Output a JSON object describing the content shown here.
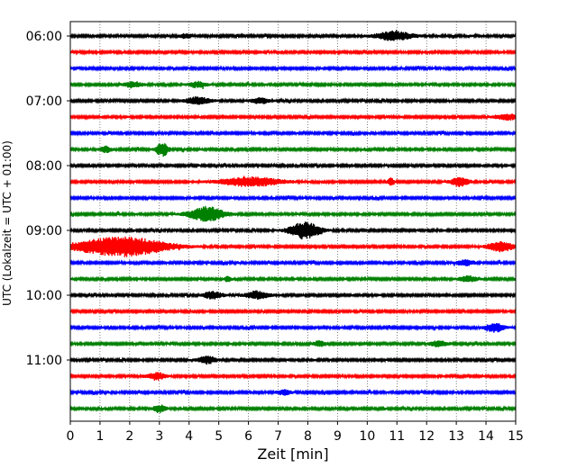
{
  "chart_data": {
    "type": "line",
    "title": "",
    "xlabel": "Zeit  [min]",
    "ylabel": "UTC (Lokalzeit = UTC + 01:00)",
    "xlim": [
      0,
      15
    ],
    "xticks": [
      0,
      1,
      2,
      3,
      4,
      5,
      6,
      7,
      8,
      9,
      10,
      11,
      12,
      13,
      14,
      15
    ],
    "x_gridlines": "dotted vertical at each minute",
    "trace_interval_minutes": 15,
    "y_ticks": [
      {
        "label": "06:00",
        "trace_index": 0
      },
      {
        "label": "07:00",
        "trace_index": 4
      },
      {
        "label": "08:00",
        "trace_index": 8
      },
      {
        "label": "09:00",
        "trace_index": 12
      },
      {
        "label": "10:00",
        "trace_index": 16
      },
      {
        "label": "11:00",
        "trace_index": 20
      }
    ],
    "color_cycle": [
      "#000000",
      "#ff0000",
      "#0000ff",
      "#008000"
    ],
    "series": [
      {
        "start": "06:00",
        "color": "#000000",
        "events": [
          {
            "t": 10.9,
            "amp": 5,
            "dur": 0.6
          },
          {
            "t": 3.9,
            "amp": 2.5,
            "dur": 0.2
          }
        ]
      },
      {
        "start": "06:15",
        "color": "#ff0000",
        "events": []
      },
      {
        "start": "06:30",
        "color": "#0000ff",
        "events": []
      },
      {
        "start": "06:45",
        "color": "#008000",
        "events": [
          {
            "t": 4.3,
            "amp": 3,
            "dur": 0.3
          },
          {
            "t": 2.1,
            "amp": 3,
            "dur": 0.3
          }
        ]
      },
      {
        "start": "07:00",
        "color": "#000000",
        "events": [
          {
            "t": 4.3,
            "amp": 4,
            "dur": 0.4
          },
          {
            "t": 6.4,
            "amp": 3,
            "dur": 0.3
          }
        ]
      },
      {
        "start": "07:15",
        "color": "#ff0000",
        "events": [
          {
            "t": 14.8,
            "amp": 3,
            "dur": 0.5
          }
        ]
      },
      {
        "start": "07:30",
        "color": "#0000ff",
        "events": []
      },
      {
        "start": "07:45",
        "color": "#008000",
        "events": [
          {
            "t": 3.1,
            "amp": 8,
            "dur": 0.2
          },
          {
            "t": 1.2,
            "amp": 3,
            "dur": 0.2
          }
        ]
      },
      {
        "start": "08:00",
        "color": "#000000",
        "events": []
      },
      {
        "start": "08:15",
        "color": "#ff0000",
        "events": [
          {
            "t": 6.1,
            "amp": 5,
            "dur": 1.0
          },
          {
            "t": 13.1,
            "amp": 5,
            "dur": 0.3
          },
          {
            "t": 10.8,
            "amp": 4,
            "dur": 0.1
          }
        ]
      },
      {
        "start": "08:30",
        "color": "#0000ff",
        "events": []
      },
      {
        "start": "08:45",
        "color": "#008000",
        "events": [
          {
            "t": 4.6,
            "amp": 8,
            "dur": 0.6
          }
        ]
      },
      {
        "start": "09:00",
        "color": "#000000",
        "events": [
          {
            "t": 7.9,
            "amp": 9,
            "dur": 0.5
          }
        ]
      },
      {
        "start": "09:15",
        "color": "#ff0000",
        "events": [
          {
            "t": 1.7,
            "amp": 11,
            "dur": 1.5
          },
          {
            "t": 14.5,
            "amp": 6,
            "dur": 0.4
          }
        ]
      },
      {
        "start": "09:30",
        "color": "#0000ff",
        "events": [
          {
            "t": 13.3,
            "amp": 3,
            "dur": 0.3
          }
        ]
      },
      {
        "start": "09:45",
        "color": "#008000",
        "events": [
          {
            "t": 13.4,
            "amp": 3,
            "dur": 0.3
          },
          {
            "t": 5.3,
            "amp": 3,
            "dur": 0.1
          }
        ]
      },
      {
        "start": "10:00",
        "color": "#000000",
        "events": [
          {
            "t": 6.3,
            "amp": 4,
            "dur": 0.4
          },
          {
            "t": 4.8,
            "amp": 4,
            "dur": 0.3
          }
        ]
      },
      {
        "start": "10:15",
        "color": "#ff0000",
        "events": []
      },
      {
        "start": "10:30",
        "color": "#0000ff",
        "events": [
          {
            "t": 14.3,
            "amp": 5,
            "dur": 0.3
          }
        ]
      },
      {
        "start": "10:45",
        "color": "#008000",
        "events": [
          {
            "t": 12.4,
            "amp": 3,
            "dur": 0.3
          },
          {
            "t": 8.4,
            "amp": 3,
            "dur": 0.2
          }
        ]
      },
      {
        "start": "11:00",
        "color": "#000000",
        "events": [
          {
            "t": 4.6,
            "amp": 4,
            "dur": 0.3
          }
        ]
      },
      {
        "start": "11:15",
        "color": "#ff0000",
        "events": [
          {
            "t": 2.9,
            "amp": 4,
            "dur": 0.3
          }
        ]
      },
      {
        "start": "11:30",
        "color": "#0000ff",
        "events": [
          {
            "t": 7.2,
            "amp": 3,
            "dur": 0.2
          }
        ]
      },
      {
        "start": "11:45",
        "color": "#008000",
        "events": [
          {
            "t": 3.0,
            "amp": 4,
            "dur": 0.2
          }
        ]
      }
    ]
  }
}
